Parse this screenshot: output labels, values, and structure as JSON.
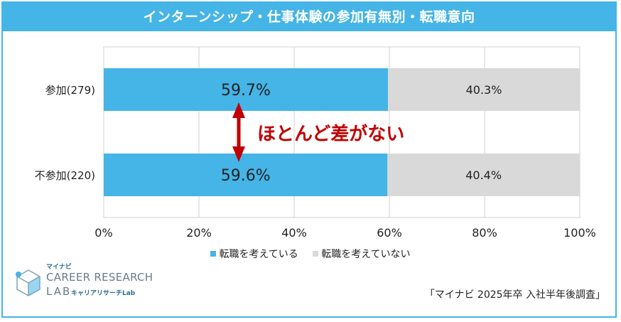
{
  "title": "インターンシップ・仕事体験の参加有無別・転職意向",
  "annotation": "ほとんど差がない",
  "source": "「マイナビ 2025年卒 入社半年後調査」",
  "logo": {
    "small": "マイナビ",
    "line1": "CAREER RESEARCH",
    "line2": "LAB",
    "line2_sub": "キャリアリサーチLab"
  },
  "colors": {
    "accent": "#45b4e6",
    "series_yes": "#45b4e6",
    "series_no": "#d9d9d9",
    "arrow": "#c00000",
    "annotation": "#c00000"
  },
  "chart_data": {
    "type": "bar",
    "orientation": "horizontal",
    "stacked": true,
    "categories": [
      "参加(279)",
      "不参加(220)"
    ],
    "series": [
      {
        "name": "転職を考えている",
        "values": [
          59.7,
          59.6
        ],
        "labels": [
          "59.7%",
          "59.6%"
        ]
      },
      {
        "name": "転職を考えていない",
        "values": [
          40.3,
          40.4
        ],
        "labels": [
          "40.3%",
          "40.4%"
        ]
      }
    ],
    "xlim": [
      0,
      100
    ],
    "xticks": [
      "0%",
      "20%",
      "40%",
      "60%",
      "80%",
      "100%"
    ],
    "grid": true,
    "legend": "bottom"
  }
}
